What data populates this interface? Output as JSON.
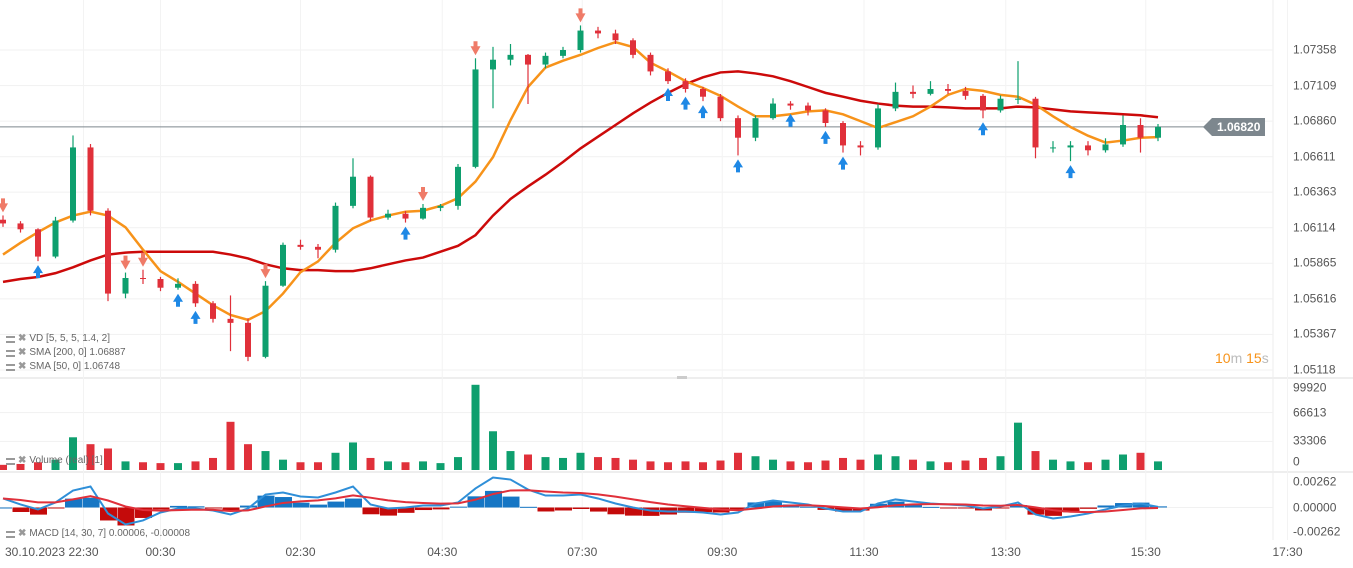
{
  "chart_data": {
    "type": "candlestick",
    "interval": "15m",
    "colors": {
      "up": "#0e9f6e",
      "down": "#e0303a",
      "sma50": "#f7931a",
      "sma200": "#cc0a0a",
      "macd": "#2f8fd8",
      "signal": "#e0303a",
      "hist_pos": "#1676c4",
      "hist_neg": "#c40a0a",
      "marker_up": "#1e88e5",
      "marker_down": "#ef7b68",
      "last_price_line": "#7d878e"
    },
    "y_axis": {
      "ticks": [
        "1.07358",
        "1.07109",
        "1.06860",
        "1.06611",
        "1.06363",
        "1.06114",
        "1.05865",
        "1.05616",
        "1.05367",
        "1.05118"
      ],
      "range": [
        1.05118,
        1.07358
      ]
    },
    "x_axis": {
      "date_label": "30.10.2023",
      "ticks": [
        {
          "label": "22:30",
          "bar": 4.6
        },
        {
          "label": "00:30",
          "bar": 9
        },
        {
          "label": "02:30",
          "bar": 17
        },
        {
          "label": "04:30",
          "bar": 25.1
        },
        {
          "label": "07:30",
          "bar": 33.1
        },
        {
          "label": "09:30",
          "bar": 41.1
        },
        {
          "label": "11:30",
          "bar": 49.2
        },
        {
          "label": "13:30",
          "bar": 57.3
        },
        {
          "label": "15:30",
          "bar": 65.3
        },
        {
          "label": "17:30",
          "bar": 73.4
        }
      ]
    },
    "last_price": "1.06820",
    "countdown": {
      "min": "10",
      "min_unit": "m",
      "sec": "15",
      "sec_unit": "s"
    },
    "ohlc": [
      [
        1.0617,
        1.062,
        1.0612,
        1.06144
      ],
      [
        1.06144,
        1.0616,
        1.0608,
        1.06103
      ],
      [
        1.06103,
        1.0611,
        1.0588,
        1.05912
      ],
      [
        1.05912,
        1.0619,
        1.059,
        1.06164
      ],
      [
        1.06164,
        1.0676,
        1.0615,
        1.06676
      ],
      [
        1.06676,
        1.067,
        1.062,
        1.06233
      ],
      [
        1.06233,
        1.0625,
        1.056,
        1.05653
      ],
      [
        1.05653,
        1.058,
        1.0562,
        1.05762
      ],
      [
        1.05762,
        1.0582,
        1.0572,
        1.05755
      ],
      [
        1.05755,
        1.0577,
        1.0567,
        1.05694
      ],
      [
        1.05694,
        1.0576,
        1.0568,
        1.05721
      ],
      [
        1.05721,
        1.0574,
        1.0556,
        1.05585
      ],
      [
        1.05585,
        1.056,
        1.0545,
        1.05476
      ],
      [
        1.05476,
        1.0564,
        1.0525,
        1.05448
      ],
      [
        1.05448,
        1.0548,
        1.0518,
        1.0521
      ],
      [
        1.0521,
        1.0574,
        1.052,
        1.05708
      ],
      [
        1.05708,
        1.0601,
        1.057,
        1.05994
      ],
      [
        1.05994,
        1.0603,
        1.0596,
        1.0598
      ],
      [
        1.0598,
        1.06,
        1.059,
        1.0596
      ],
      [
        1.0596,
        1.0629,
        1.0594,
        1.06267
      ],
      [
        1.06267,
        1.066,
        1.0625,
        1.06471
      ],
      [
        1.06471,
        1.0648,
        1.0616,
        1.06185
      ],
      [
        1.06185,
        1.0624,
        1.0617,
        1.06212
      ],
      [
        1.06212,
        1.0623,
        1.0615,
        1.06178
      ],
      [
        1.06178,
        1.0628,
        1.0617,
        1.06253
      ],
      [
        1.06253,
        1.0628,
        1.0623,
        1.06267
      ],
      [
        1.06267,
        1.0656,
        1.0624,
        1.0654
      ],
      [
        1.0654,
        1.073,
        1.0653,
        1.07222
      ],
      [
        1.07222,
        1.0738,
        1.0695,
        1.0729
      ],
      [
        1.0729,
        1.074,
        1.0725,
        1.07324
      ],
      [
        1.07324,
        1.0733,
        1.0698,
        1.07256
      ],
      [
        1.07256,
        1.0734,
        1.0723,
        1.07317
      ],
      [
        1.07317,
        1.0738,
        1.073,
        1.07358
      ],
      [
        1.07358,
        1.0753,
        1.0734,
        1.07494
      ],
      [
        1.07494,
        1.0752,
        1.0744,
        1.07474
      ],
      [
        1.07474,
        1.075,
        1.074,
        1.07426
      ],
      [
        1.07426,
        1.0744,
        1.073,
        1.07324
      ],
      [
        1.07324,
        1.0734,
        1.0718,
        1.07208
      ],
      [
        1.07208,
        1.0723,
        1.0712,
        1.0714
      ],
      [
        1.0714,
        1.0716,
        1.0706,
        1.07085
      ],
      [
        1.07085,
        1.071,
        1.07,
        1.07031
      ],
      [
        1.07031,
        1.0705,
        1.0686,
        1.06881
      ],
      [
        1.06881,
        1.069,
        1.0662,
        1.06744
      ],
      [
        1.06744,
        1.069,
        1.0672,
        1.06881
      ],
      [
        1.06881,
        1.0702,
        1.0687,
        1.06983
      ],
      [
        1.06983,
        1.07,
        1.0694,
        1.06969
      ],
      [
        1.06969,
        1.0699,
        1.069,
        1.06935
      ],
      [
        1.06935,
        1.0695,
        1.0682,
        1.06847
      ],
      [
        1.06847,
        1.0686,
        1.0664,
        1.0669
      ],
      [
        1.0669,
        1.0672,
        1.0662,
        1.06676
      ],
      [
        1.06676,
        1.0698,
        1.0666,
        1.06949
      ],
      [
        1.06949,
        1.0713,
        1.0693,
        1.07065
      ],
      [
        1.07065,
        1.0711,
        1.0702,
        1.07051
      ],
      [
        1.07051,
        1.0714,
        1.0704,
        1.07085
      ],
      [
        1.07085,
        1.0712,
        1.0705,
        1.07072
      ],
      [
        1.07072,
        1.071,
        1.0701,
        1.07037
      ],
      [
        1.07037,
        1.0705,
        1.0688,
        1.06935
      ],
      [
        1.06935,
        1.0704,
        1.0692,
        1.07017
      ],
      [
        1.07017,
        1.0728,
        1.0698,
        1.07017
      ],
      [
        1.07017,
        1.0703,
        1.066,
        1.06676
      ],
      [
        1.06676,
        1.0672,
        1.0664,
        1.06676
      ],
      [
        1.06676,
        1.0672,
        1.0658,
        1.0669
      ],
      [
        1.0669,
        1.0672,
        1.0662,
        1.06656
      ],
      [
        1.06656,
        1.0674,
        1.0664,
        1.06697
      ],
      [
        1.06697,
        1.069,
        1.0668,
        1.06833
      ],
      [
        1.06833,
        1.0688,
        1.0664,
        1.06744
      ],
      [
        1.06744,
        1.0684,
        1.0672,
        1.0682
      ]
    ],
    "sma50": [
      1.05926,
      1.06008,
      1.06083,
      1.06151,
      1.06199,
      1.06226,
      1.06199,
      1.06117,
      1.0596,
      1.0581,
      1.05735,
      1.05653,
      1.05571,
      1.05503,
      1.05469,
      1.0553,
      1.05653,
      1.05803,
      1.05878,
      1.06008,
      1.0611,
      1.06165,
      1.06199,
      1.06226,
      1.06233,
      1.06267,
      1.06321,
      1.06437,
      1.06608,
      1.06867,
      1.07099,
      1.07235,
      1.07283,
      1.07324,
      1.07372,
      1.07413,
      1.07379,
      1.07269,
      1.07208,
      1.0714,
      1.07092,
      1.07037,
      1.06962,
      1.06894,
      1.06894,
      1.06908,
      1.06928,
      1.06935,
      1.06908,
      1.0686,
      1.06812,
      1.06853,
      1.06894,
      1.06962,
      1.07044,
      1.07085,
      1.07072,
      1.07044,
      1.07031,
      1.06976,
      1.06894,
      1.06819,
      1.06758,
      1.0671,
      1.06724,
      1.06744,
      1.06748
    ],
    "sma200": [
      1.05735,
      1.05755,
      1.05769,
      1.05796,
      1.05837,
      1.05885,
      1.05926,
      1.0594,
      1.05946,
      1.05946,
      1.05946,
      1.05946,
      1.05946,
      1.05926,
      1.05899,
      1.05858,
      1.0583,
      1.05817,
      1.05817,
      1.0581,
      1.0581,
      1.0583,
      1.05858,
      1.05885,
      1.05905,
      1.05946,
      1.05987,
      1.06062,
      1.06199,
      1.06315,
      1.06403,
      1.06485,
      1.06574,
      1.06669,
      1.06751,
      1.06833,
      1.06915,
      1.0699,
      1.07058,
      1.07119,
      1.07167,
      1.07201,
      1.07208,
      1.07194,
      1.07174,
      1.0714,
      1.07099,
      1.07058,
      1.07031,
      1.07003,
      1.06983,
      1.06969,
      1.06962,
      1.06962,
      1.06956,
      1.06949,
      1.06949,
      1.06949,
      1.06962,
      1.06956,
      1.06942,
      1.06928,
      1.06921,
      1.06915,
      1.06908,
      1.06901,
      1.06887
    ],
    "markers": [
      {
        "bar": 0,
        "type": "down"
      },
      {
        "bar": 7,
        "type": "down"
      },
      {
        "bar": 8,
        "type": "down"
      },
      {
        "bar": 15,
        "type": "down"
      },
      {
        "bar": 24,
        "type": "down"
      },
      {
        "bar": 27,
        "type": "down"
      },
      {
        "bar": 33,
        "type": "down"
      },
      {
        "bar": 2,
        "type": "up"
      },
      {
        "bar": 10,
        "type": "up"
      },
      {
        "bar": 11,
        "type": "up"
      },
      {
        "bar": 23,
        "type": "up"
      },
      {
        "bar": 38,
        "type": "up"
      },
      {
        "bar": 39,
        "type": "up"
      },
      {
        "bar": 40,
        "type": "up"
      },
      {
        "bar": 42,
        "type": "up"
      },
      {
        "bar": 45,
        "type": "up"
      },
      {
        "bar": 47,
        "type": "up"
      },
      {
        "bar": 48,
        "type": "up"
      },
      {
        "bar": 56,
        "type": "up"
      },
      {
        "bar": 61,
        "type": "up"
      }
    ],
    "volume": {
      "ticks": [
        "99920",
        "66613",
        "33306",
        "0"
      ],
      "range": [
        0,
        99920
      ],
      "values": [
        6000,
        7000,
        9000,
        12000,
        38000,
        30000,
        25000,
        10000,
        9000,
        8000,
        8000,
        10000,
        14000,
        56000,
        30000,
        22000,
        12000,
        9000,
        9000,
        20000,
        32000,
        14000,
        10000,
        9000,
        10000,
        8000,
        15000,
        99000,
        45000,
        22000,
        18000,
        15000,
        14000,
        20000,
        15000,
        14000,
        12000,
        10000,
        9000,
        10000,
        9000,
        11000,
        20000,
        16000,
        12000,
        10000,
        9000,
        11000,
        14000,
        12000,
        18000,
        16000,
        12000,
        10000,
        9000,
        11000,
        14000,
        16000,
        55000,
        22000,
        12000,
        10000,
        9000,
        12000,
        18000,
        20000,
        10000
      ]
    },
    "macd": {
      "ticks": [
        "0.00262",
        "0.00000",
        "-0.00262"
      ],
      "range": [
        -0.00262,
        0.00262
      ],
      "values": [
        0.00083,
        0.00028,
        -0.00018,
        0.00046,
        0.00156,
        0.00193,
        -0.00055,
        -0.00156,
        -0.00119,
        -0.00046,
        -9e-05,
        -9e-05,
        -0.00028,
        -0.00064,
        -9e-05,
        0.00119,
        0.00138,
        0.00101,
        0.00092,
        0.00138,
        0.00193,
        0.00028,
        -9e-05,
        0,
        0.00018,
        0.00018,
        0.00046,
        0.00175,
        0.00276,
        0.00257,
        0.00165,
        0.0011,
        0.0011,
        0.00119,
        0.00083,
        0.00037,
        0,
        -0.00028,
        -0.00037,
        -0.00037,
        -0.00046,
        -0.00064,
        -0.00046,
        0.00037,
        0.00064,
        0.00046,
        0.00028,
        -9e-05,
        -0.00037,
        -0.00037,
        0.00037,
        0.00074,
        0.00055,
        0.00037,
        0.00028,
        0.00018,
        -9e-05,
        9e-05,
        0.00046,
        -0.00064,
        -0.00101,
        -0.00083,
        -0.00055,
        -0.00018,
        0.00018,
        0.00037,
        6e-05
      ]
    }
  },
  "legends": {
    "vd": "VD [5, 5, 5, 1.4, 2]",
    "sma200": "SMA [200, 0] 1.06887",
    "sma50": "SMA [50, 0] 1.06748",
    "volume": "Volume (real) [1]",
    "macd": "MACD [14, 30, 7] 0.00006, -0.00008"
  }
}
